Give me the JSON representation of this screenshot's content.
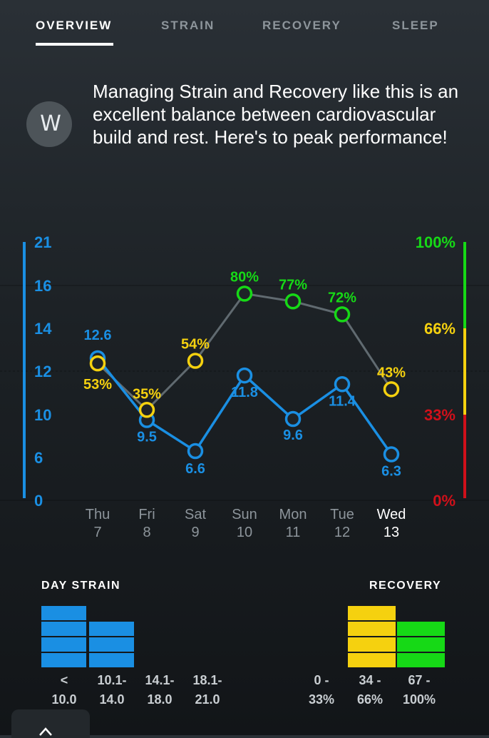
{
  "tabs": [
    {
      "label": "OVERVIEW",
      "active": true
    },
    {
      "label": "STRAIN",
      "active": false
    },
    {
      "label": "RECOVERY",
      "active": false
    },
    {
      "label": "SLEEP",
      "active": false
    }
  ],
  "coach": {
    "icon": "W",
    "message": "Managing Strain and Recovery like this is an excellent balance between cardiovascular build and rest. Here's to peak performance!"
  },
  "chart_data": {
    "type": "line",
    "categories": [
      {
        "day": "Thu",
        "date": "7"
      },
      {
        "day": "Fri",
        "date": "8"
      },
      {
        "day": "Sat",
        "date": "9"
      },
      {
        "day": "Sun",
        "date": "10"
      },
      {
        "day": "Mon",
        "date": "11"
      },
      {
        "day": "Tue",
        "date": "12"
      },
      {
        "day": "Wed",
        "date": "13"
      }
    ],
    "left_axis_ticks": [
      "21",
      "16",
      "14",
      "12",
      "10",
      "6",
      "0"
    ],
    "right_axis_ticks": [
      "100%",
      "66%",
      "33%",
      "0%"
    ],
    "strain": {
      "values": [
        12.6,
        9.5,
        6.6,
        11.8,
        9.6,
        11.4,
        6.3
      ],
      "labels": [
        "12.6",
        "9.5",
        "6.6",
        "11.8",
        "9.6",
        "11.4",
        "6.3"
      ],
      "color": "#1a8fe3"
    },
    "recovery": {
      "values": [
        53,
        35,
        54,
        80,
        77,
        72,
        43
      ],
      "labels": [
        "53%",
        "35%",
        "54%",
        "80%",
        "77%",
        "72%",
        "43%"
      ]
    },
    "colors": {
      "green": "#16d916",
      "yellow": "#f5d10f",
      "red": "#d0101a",
      "blue": "#1a8fe3",
      "line": "#606a70"
    }
  },
  "day_strain": {
    "title": "DAY STRAIN",
    "bins": [
      {
        "l1": "<",
        "l2": "10.0"
      },
      {
        "l1": "10.1-",
        "l2": "14.0"
      },
      {
        "l1": "14.1-",
        "l2": "18.0"
      },
      {
        "l1": "18.1-",
        "l2": "21.0"
      }
    ],
    "counts": [
      4,
      3,
      0,
      0
    ]
  },
  "recovery_hist": {
    "title": "RECOVERY",
    "bins": [
      {
        "l1": "0 -",
        "l2": "33%"
      },
      {
        "l1": "34 -",
        "l2": "66%"
      },
      {
        "l1": "67 -",
        "l2": "100%"
      }
    ],
    "counts": [
      0,
      4,
      3
    ]
  }
}
